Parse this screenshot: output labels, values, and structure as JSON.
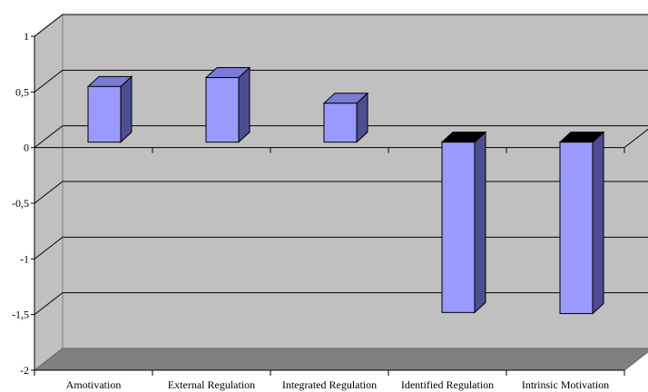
{
  "colors": {
    "wall": "#c0c0c0",
    "floor": "#808080",
    "bar_front": "#9999ff",
    "bar_side": "#4d4d8f",
    "bar_top": "#7b7bd6",
    "bar_top_negative": "#000000",
    "grid": "#000000"
  },
  "chart_data": {
    "type": "bar",
    "title": "",
    "xlabel": "",
    "ylabel": "",
    "ylim": [
      -2,
      1
    ],
    "yticks": [
      1,
      0.5,
      0,
      -0.5,
      -1,
      -1.5,
      -2
    ],
    "ytick_labels": [
      "1",
      "0,5",
      "0",
      "-0,5",
      "-1",
      "-1,5",
      "-2"
    ],
    "categories": [
      "Amotivation",
      "External Regulation",
      "Integrated Regulation",
      "Identified Regulation",
      "Intrinsic Motivation"
    ],
    "values": [
      0.5,
      0.58,
      0.35,
      -1.53,
      -1.54
    ],
    "grid": true,
    "legend": "none",
    "style": "3d"
  }
}
